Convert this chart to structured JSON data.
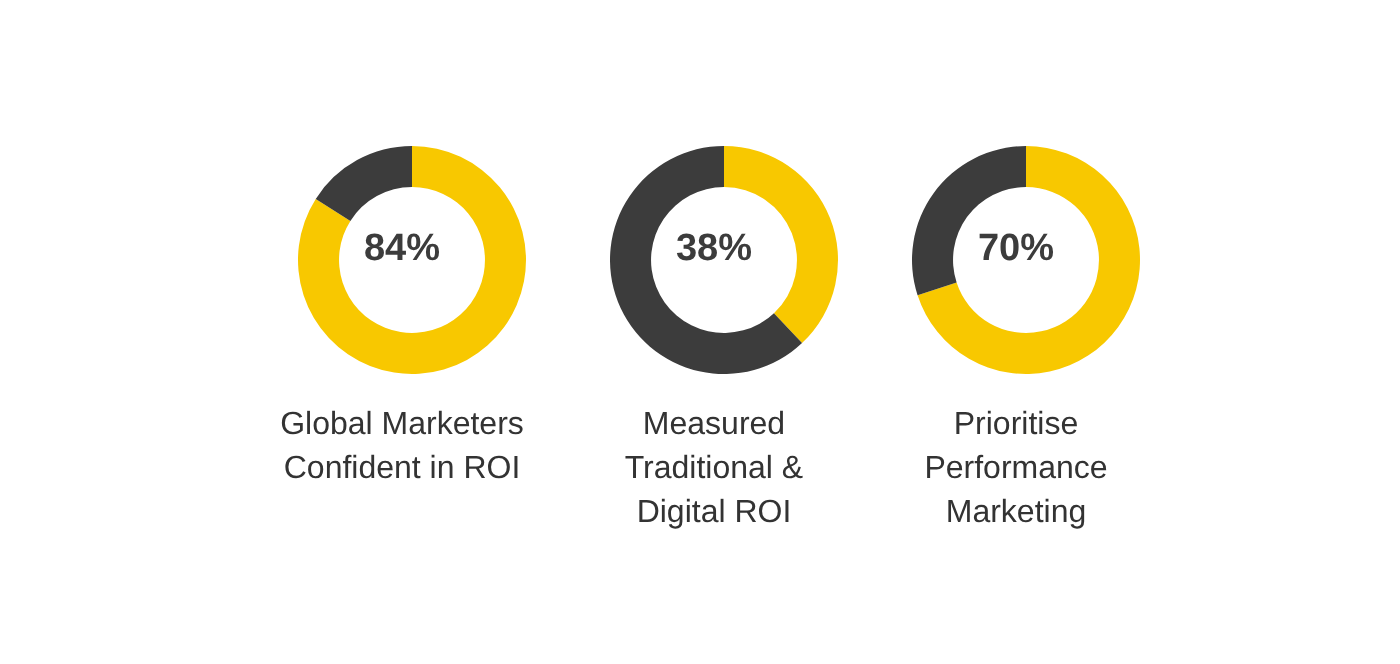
{
  "chart_data": [
    {
      "type": "donut",
      "title": "Global Marketers Confident in ROI",
      "categories": [
        null,
        null
      ],
      "values": [
        84,
        16
      ],
      "colors": [
        "#f8c800",
        "#3c3c3c"
      ],
      "annotations": [
        "84%"
      ],
      "legend": false
    },
    {
      "type": "donut",
      "title": "Measured Traditional & Digital ROI",
      "categories": [
        null,
        null
      ],
      "values": [
        38,
        62
      ],
      "colors": [
        "#f8c800",
        "#3c3c3c"
      ],
      "annotations": [
        "38%"
      ],
      "legend": false
    },
    {
      "type": "donut",
      "title": "Prioritise Performance Marketing",
      "categories": [
        null,
        null
      ],
      "values": [
        70,
        30
      ],
      "colors": [
        "#f8c800",
        "#3c3c3c"
      ],
      "annotations": [
        "70%"
      ],
      "legend": false
    }
  ]
}
